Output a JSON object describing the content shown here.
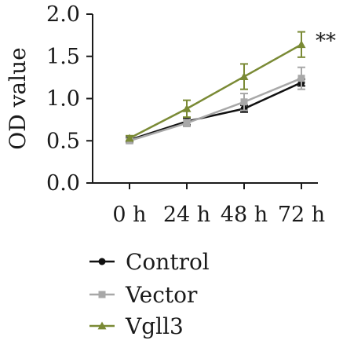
{
  "chart_data": {
    "type": "line",
    "x": [
      "0 h",
      "24 h",
      "48 h",
      "72 h"
    ],
    "ylabel": "OD value",
    "xlabel": "",
    "ylim": [
      0.0,
      2.0
    ],
    "yticks": [
      "0.0",
      "0.5",
      "1.0",
      "1.5",
      "2.0"
    ],
    "series": [
      {
        "name": "Control",
        "values": [
          0.51,
          0.73,
          0.88,
          1.19
        ],
        "errors": [
          0.03,
          0.04,
          0.04,
          0.04
        ],
        "color": "#111111",
        "marker": "circle"
      },
      {
        "name": "Vector",
        "values": [
          0.5,
          0.71,
          0.96,
          1.24
        ],
        "errors": [
          0.03,
          0.04,
          0.1,
          0.13
        ],
        "color": "#a8a8a8",
        "marker": "square"
      },
      {
        "name": "Vgll3",
        "values": [
          0.53,
          0.88,
          1.26,
          1.64
        ],
        "errors": [
          0.03,
          0.1,
          0.15,
          0.15
        ],
        "color": "#7a8a35",
        "marker": "triangle"
      }
    ],
    "annotation": "**",
    "legend_position": "bottom"
  }
}
